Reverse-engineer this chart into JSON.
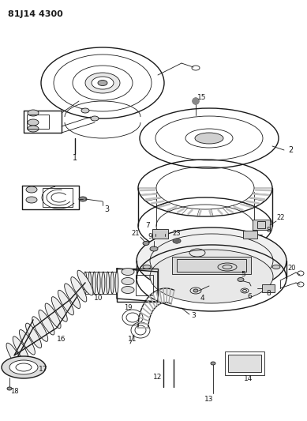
{
  "title": "81J14 4300",
  "bg_color": "#ffffff",
  "line_color": "#1a1a1a",
  "fig_width": 3.89,
  "fig_height": 5.33,
  "dpi": 100,
  "xlim": [
    0,
    389
  ],
  "ylim": [
    0,
    533
  ]
}
